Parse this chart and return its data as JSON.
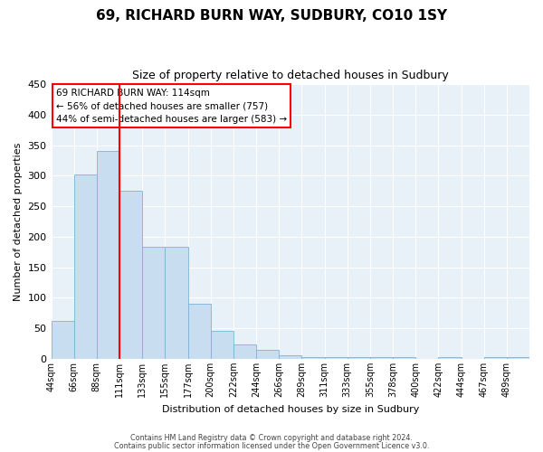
{
  "title": "69, RICHARD BURN WAY, SUDBURY, CO10 1SY",
  "subtitle": "Size of property relative to detached houses in Sudbury",
  "xlabel": "Distribution of detached houses by size in Sudbury",
  "ylabel": "Number of detached properties",
  "bar_color": "#c8ddf0",
  "bar_edge_color": "#7ab3d8",
  "background_color": "#e8f0f8",
  "grid_color": "#ffffff",
  "vline_color": "red",
  "vline_index": 3,
  "annotation_title": "69 RICHARD BURN WAY: 114sqm",
  "annotation_line1": "← 56% of detached houses are smaller (757)",
  "annotation_line2": "44% of semi-detached houses are larger (583) →",
  "annotation_box_color": "white",
  "annotation_box_edge": "red",
  "categories": [
    "44sqm",
    "66sqm",
    "88sqm",
    "111sqm",
    "133sqm",
    "155sqm",
    "177sqm",
    "200sqm",
    "222sqm",
    "244sqm",
    "266sqm",
    "289sqm",
    "311sqm",
    "333sqm",
    "355sqm",
    "378sqm",
    "400sqm",
    "422sqm",
    "444sqm",
    "467sqm",
    "489sqm"
  ],
  "values": [
    62,
    302,
    340,
    275,
    184,
    184,
    90,
    46,
    24,
    15,
    6,
    3,
    3,
    3,
    3,
    3,
    0,
    3,
    0,
    3,
    3
  ],
  "ylim": [
    0,
    450
  ],
  "yticks": [
    0,
    50,
    100,
    150,
    200,
    250,
    300,
    350,
    400,
    450
  ],
  "footer1": "Contains HM Land Registry data © Crown copyright and database right 2024.",
  "footer2": "Contains public sector information licensed under the Open Government Licence v3.0."
}
